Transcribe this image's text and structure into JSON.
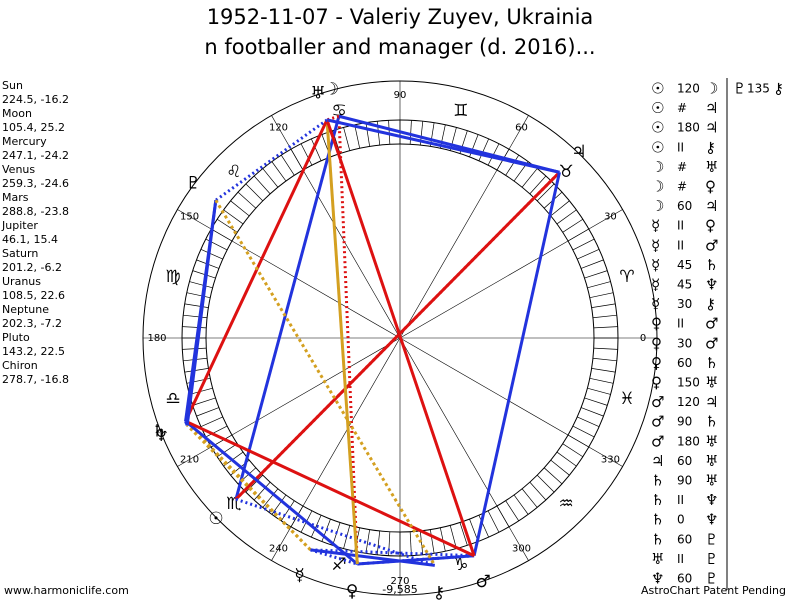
{
  "header": {
    "title_lines": [
      "1952-11-07 - Valeriy Zuyev, Ukrainia",
      "n footballer and manager (d. 2016)..."
    ]
  },
  "planets": [
    {
      "name": "Sun",
      "glyph": "☉",
      "coords": "224.5, -16.2",
      "lon": 224.5
    },
    {
      "name": "Moon",
      "glyph": "☽",
      "coords": "105.4, 25.2",
      "lon": 105.4
    },
    {
      "name": "Mercury",
      "glyph": "☿",
      "coords": "247.1, -24.2",
      "lon": 247.1
    },
    {
      "name": "Venus",
      "glyph": "♀",
      "coords": "259.3, -24.6",
      "lon": 259.3
    },
    {
      "name": "Mars",
      "glyph": "♂",
      "coords": "288.8, -23.8",
      "lon": 288.8
    },
    {
      "name": "Jupiter",
      "glyph": "♃",
      "coords": "46.1, 15.4",
      "lon": 46.1
    },
    {
      "name": "Saturn",
      "glyph": "♄",
      "coords": "201.2, -6.2",
      "lon": 201.2
    },
    {
      "name": "Uranus",
      "glyph": "♅",
      "coords": "108.5, 22.6",
      "lon": 108.5
    },
    {
      "name": "Neptune",
      "glyph": "♆",
      "coords": "202.3, -7.2",
      "lon": 202.3
    },
    {
      "name": "Pluto",
      "glyph": "♇",
      "coords": "143.2, 22.5",
      "lon": 143.2
    },
    {
      "name": "Chiron",
      "glyph": "⚷",
      "coords": "278.7, -16.8",
      "lon": 278.7
    }
  ],
  "signs": [
    "♈",
    "♉",
    "♊",
    "♋",
    "♌",
    "♍",
    "♎",
    "♏",
    "♐",
    "♑",
    "♒",
    "♓"
  ],
  "degree_labels": [
    0,
    30,
    60,
    90,
    120,
    150,
    180,
    210,
    240,
    270,
    300,
    330
  ],
  "aspects": [
    {
      "from": "☉",
      "aspect": "120",
      "to": "☽"
    },
    {
      "from": "☉",
      "aspect": "#",
      "to": "♃"
    },
    {
      "from": "☉",
      "aspect": "180",
      "to": "♃"
    },
    {
      "from": "☉",
      "aspect": "II",
      "to": "⚷"
    },
    {
      "from": "☽",
      "aspect": "#",
      "to": "♅"
    },
    {
      "from": "☽",
      "aspect": "#",
      "to": "♀"
    },
    {
      "from": "☽",
      "aspect": "60",
      "to": "♃"
    },
    {
      "from": "☿",
      "aspect": "II",
      "to": "♀"
    },
    {
      "from": "☿",
      "aspect": "II",
      "to": "♂"
    },
    {
      "from": "☿",
      "aspect": "45",
      "to": "♄"
    },
    {
      "from": "☿",
      "aspect": "45",
      "to": "♆"
    },
    {
      "from": "☿",
      "aspect": "30",
      "to": "⚷"
    },
    {
      "from": "♀",
      "aspect": "II",
      "to": "♂"
    },
    {
      "from": "♀",
      "aspect": "30",
      "to": "♂"
    },
    {
      "from": "♀",
      "aspect": "60",
      "to": "♄"
    },
    {
      "from": "♀",
      "aspect": "150",
      "to": "♅"
    },
    {
      "from": "♂",
      "aspect": "120",
      "to": "♃"
    },
    {
      "from": "♂",
      "aspect": "90",
      "to": "♄"
    },
    {
      "from": "♂",
      "aspect": "180",
      "to": "♅"
    },
    {
      "from": "♃",
      "aspect": "60",
      "to": "♅"
    },
    {
      "from": "♄",
      "aspect": "90",
      "to": "♅"
    },
    {
      "from": "♄",
      "aspect": "II",
      "to": "♆"
    },
    {
      "from": "♄",
      "aspect": "0",
      "to": "♆"
    },
    {
      "from": "♄",
      "aspect": "60",
      "to": "♇"
    },
    {
      "from": "♅",
      "aspect": "II",
      "to": "♇"
    },
    {
      "from": "♆",
      "aspect": "60",
      "to": "♇"
    }
  ],
  "extra_aspect": {
    "from": "♇",
    "aspect": "135",
    "to": "⚷"
  },
  "aspect_styles": {
    "0": "#2233dd",
    "30": "#2233dd",
    "60": "#2233dd",
    "120": "#2233dd",
    "90": "#dd1111",
    "180": "#dd1111",
    "150": "#d4a020",
    "45": "#d4a020",
    "135": "#d4a020"
  },
  "footer": {
    "left": "www.harmoniclife.com",
    "right": "AstroChart Patent Pending",
    "center": "-9,585"
  }
}
